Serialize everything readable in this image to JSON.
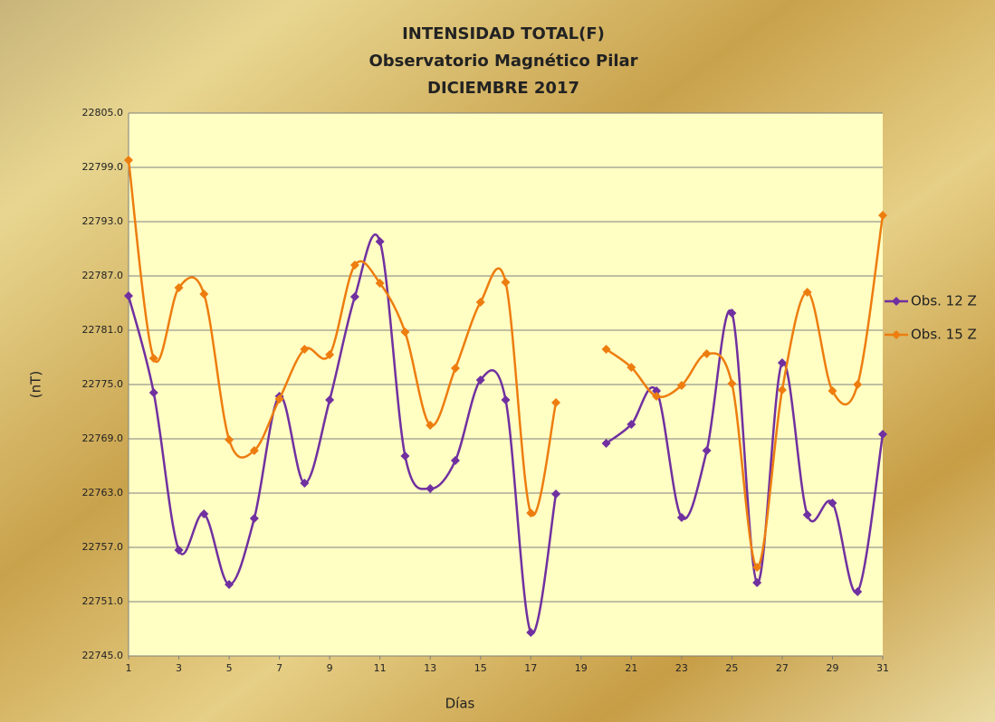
{
  "chart_data": {
    "type": "line",
    "title": "INTENSIDAD TOTAL(F)",
    "subtitle": [
      "Observatorio Magnético Pilar",
      "DICIEMBRE 2017"
    ],
    "x_label": "Días",
    "y_label": "(nT)",
    "x": [
      1,
      2,
      3,
      4,
      5,
      6,
      7,
      8,
      9,
      10,
      11,
      12,
      13,
      14,
      15,
      16,
      17,
      18,
      19,
      20,
      21,
      22,
      23,
      24,
      25,
      26,
      27,
      28,
      29,
      30,
      31
    ],
    "xlim": [
      1,
      31
    ],
    "xticks": [
      1,
      3,
      5,
      7,
      9,
      11,
      13,
      15,
      17,
      19,
      21,
      23,
      25,
      27,
      29,
      31
    ],
    "ylim": [
      22745,
      22805
    ],
    "yticks": [
      {
        "value": 22745,
        "label": "22745.0"
      },
      {
        "value": 22751,
        "label": "22751.0"
      },
      {
        "value": 22757,
        "label": "22757.0"
      },
      {
        "value": 22763,
        "label": "22763.0"
      },
      {
        "value": 22769,
        "label": "22769.0"
      },
      {
        "value": 22775,
        "label": "22775.0"
      },
      {
        "value": 22781,
        "label": "22781.0"
      },
      {
        "value": 22787,
        "label": "22787.0"
      },
      {
        "value": 22793,
        "label": "22793.0"
      },
      {
        "value": 22799,
        "label": "22799.0"
      },
      {
        "value": 22805,
        "label": "22805.0"
      }
    ],
    "grid": true,
    "smooth": true,
    "legend": "right",
    "series": [
      {
        "name": "Obs. 12 Z",
        "color": "#7030a0",
        "values": [
          22784.8,
          22774.1,
          22756.7,
          22760.7,
          22752.9,
          22760.2,
          22773.7,
          22764.1,
          22773.3,
          22784.7,
          22790.8,
          22767.1,
          22763.5,
          22766.6,
          22775.5,
          22773.3,
          22747.6,
          22762.9,
          null,
          22768.5,
          22770.6,
          22774.3,
          22760.3,
          22767.7,
          22782.9,
          22753.1,
          22777.4,
          22760.6,
          22761.9,
          22752.1,
          22769.5
        ]
      },
      {
        "name": "Obs. 15 Z",
        "color": "#ed7d0f",
        "values": [
          22799.8,
          22777.9,
          22785.7,
          22785.0,
          22768.9,
          22767.7,
          22773.4,
          22778.9,
          22778.3,
          22788.2,
          22786.2,
          22780.8,
          22770.5,
          22776.8,
          22784.1,
          22786.3,
          22760.8,
          22773.0,
          null,
          22778.9,
          22776.9,
          22773.7,
          22774.9,
          22778.4,
          22775.1,
          22754.8,
          22774.4,
          22785.2,
          22774.3,
          22775.0,
          22793.7
        ]
      }
    ]
  }
}
